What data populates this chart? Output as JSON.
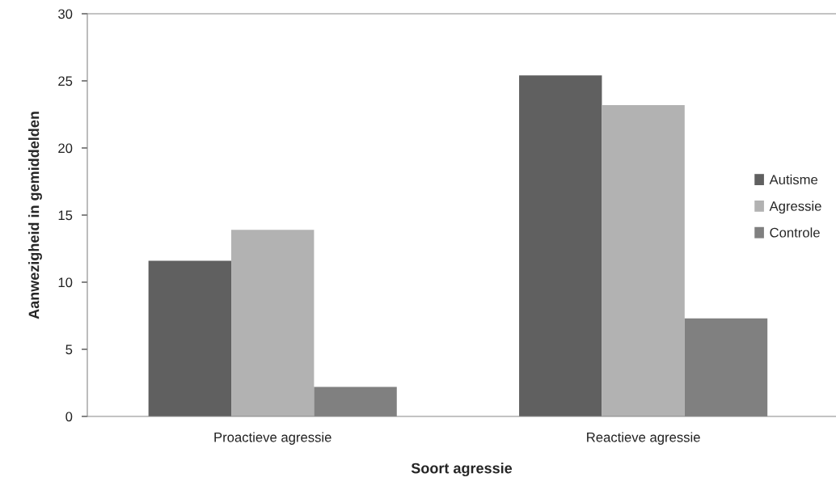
{
  "chart_data": {
    "type": "bar",
    "xlabel": "Soort agressie",
    "ylabel": "Aanwezigheid in gemiddelden",
    "categories": [
      "Proactieve agressie",
      "Reactieve agressie"
    ],
    "series": [
      {
        "name": "Autisme",
        "color": "#606060",
        "values": [
          11.6,
          25.4
        ]
      },
      {
        "name": "Agressie",
        "color": "#b2b2b2",
        "values": [
          13.9,
          23.2
        ]
      },
      {
        "name": "Controle",
        "color": "#808080",
        "values": [
          2.2,
          7.3
        ]
      }
    ],
    "ylim": [
      0,
      30
    ],
    "yticks": [
      0,
      5,
      10,
      15,
      20,
      25,
      30
    ],
    "grid": false,
    "legend": "right"
  }
}
